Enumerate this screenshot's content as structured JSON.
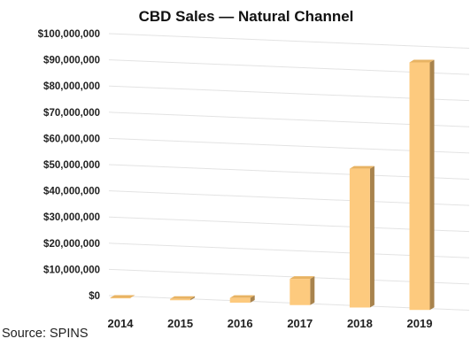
{
  "chart_data": {
    "type": "bar",
    "title": "CBD Sales — Natural Channel",
    "categories": [
      "2014",
      "2015",
      "2016",
      "2017",
      "2018",
      "2019"
    ],
    "values": [
      0,
      500000,
      1800000,
      10000000,
      53000000,
      94500000
    ],
    "ylim": [
      0,
      100000000
    ],
    "yticks": [
      "$0",
      "$10,000,000",
      "$20,000,000",
      "$30,000,000",
      "$40,000,000",
      "$50,000,000",
      "$60,000,000",
      "$70,000,000",
      "$80,000,000",
      "$90,000,000",
      "$100,000,000"
    ],
    "xlabel": "",
    "ylabel": "",
    "grid": true,
    "three_d": true
  },
  "colors": {
    "bar_front": "#fdca7e",
    "bar_side": "#a8834d",
    "bar_top": "#e8b363",
    "grid": "#e3e3e3"
  },
  "source_note": "Source: SPINS"
}
